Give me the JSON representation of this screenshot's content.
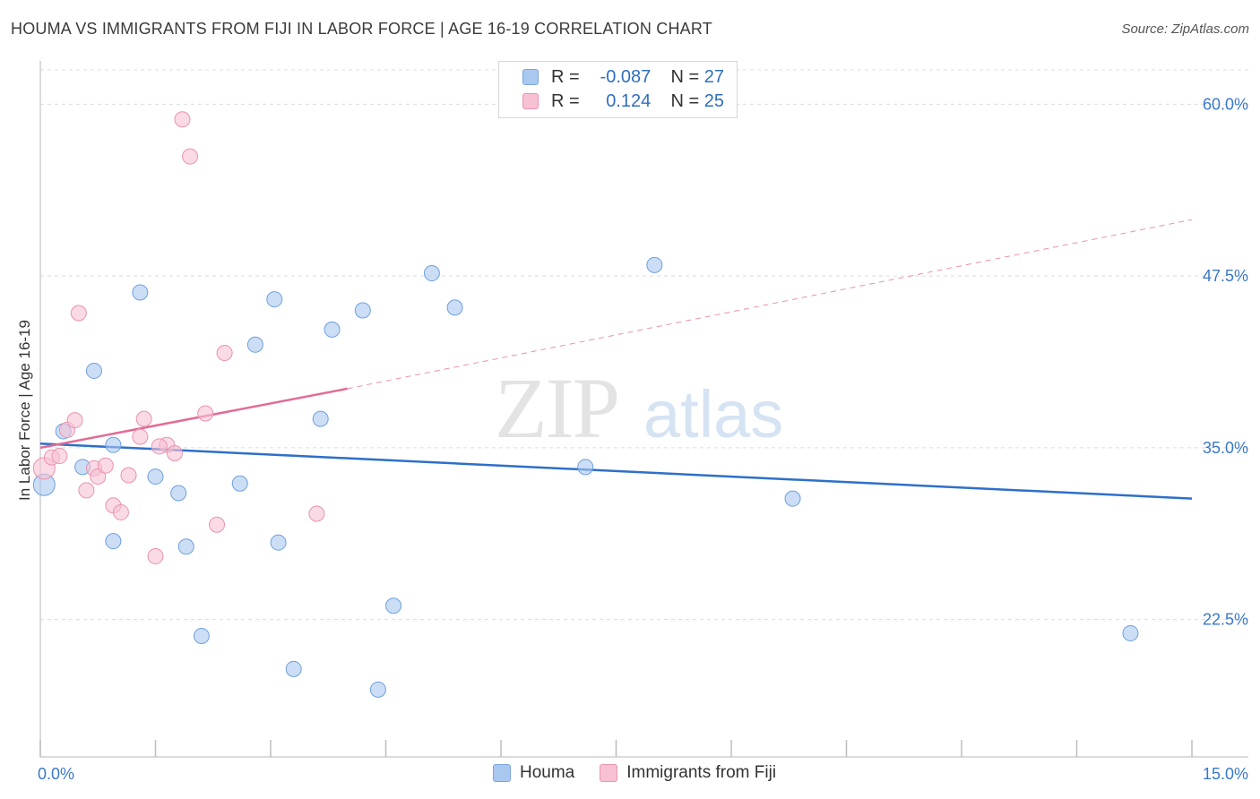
{
  "title": "HOUMA VS IMMIGRANTS FROM FIJI IN LABOR FORCE | AGE 16-19 CORRELATION CHART",
  "source": "Source: ZipAtlas.com",
  "watermark": {
    "zip": "ZIP",
    "atlas": "atlas"
  },
  "legend": {
    "rows": [
      {
        "r_label": "R =",
        "r_value": "-0.087",
        "n_label": "N =",
        "n_value": "27",
        "color": "#a9c8f0",
        "border": "#7aa6de"
      },
      {
        "r_label": "R =",
        "r_value": "0.124",
        "n_label": "N =",
        "n_value": "25",
        "color": "#f7c1d3",
        "border": "#e995b4"
      }
    ]
  },
  "chart_data": {
    "type": "scatter",
    "xlabel": "",
    "ylabel": "In Labor Force | Age 16-19",
    "xlim": [
      0,
      15
    ],
    "ylim": [
      12.5,
      62.5
    ],
    "x_tick_labels": [
      {
        "value": 0,
        "label": "0.0%"
      },
      {
        "value": 15,
        "label": "15.0%"
      }
    ],
    "y_tick_labels": [
      {
        "value": 22.5,
        "label": "22.5%"
      },
      {
        "value": 35.0,
        "label": "35.0%"
      },
      {
        "value": 47.5,
        "label": "47.5%"
      },
      {
        "value": 60.0,
        "label": "60.0%"
      }
    ],
    "grid": true,
    "series": [
      {
        "name": "Houma",
        "color": "#a9c8f0",
        "stroke": "#6f9fdc",
        "line_color": "#2e6fca",
        "points": [
          [
            0.05,
            32.3
          ],
          [
            0.3,
            36.2
          ],
          [
            0.55,
            33.6
          ],
          [
            0.7,
            40.6
          ],
          [
            0.95,
            35.2
          ],
          [
            0.95,
            28.2
          ],
          [
            1.3,
            46.3
          ],
          [
            1.5,
            32.9
          ],
          [
            1.8,
            31.7
          ],
          [
            1.9,
            27.8
          ],
          [
            2.1,
            21.3
          ],
          [
            2.6,
            32.4
          ],
          [
            2.8,
            42.5
          ],
          [
            3.05,
            45.8
          ],
          [
            3.1,
            28.1
          ],
          [
            3.3,
            18.9
          ],
          [
            3.65,
            37.1
          ],
          [
            3.8,
            43.6
          ],
          [
            4.2,
            45.0
          ],
          [
            4.4,
            17.4
          ],
          [
            4.6,
            23.5
          ],
          [
            5.1,
            47.7
          ],
          [
            5.4,
            45.2
          ],
          [
            7.1,
            33.6
          ],
          [
            8.0,
            48.3
          ],
          [
            9.8,
            31.3
          ],
          [
            14.2,
            21.5
          ]
        ],
        "trend": {
          "x": [
            0,
            15
          ],
          "y": [
            35.3,
            31.3
          ]
        }
      },
      {
        "name": "Immigrants from Fiji",
        "color": "#f7c1d3",
        "stroke": "#e993b2",
        "line_color": "#e36b96",
        "points": [
          [
            0.05,
            33.5
          ],
          [
            0.15,
            34.3
          ],
          [
            0.25,
            34.4
          ],
          [
            0.35,
            36.3
          ],
          [
            0.45,
            37.0
          ],
          [
            0.6,
            31.9
          ],
          [
            0.7,
            33.5
          ],
          [
            0.75,
            32.9
          ],
          [
            0.85,
            33.7
          ],
          [
            0.95,
            30.8
          ],
          [
            1.05,
            30.3
          ],
          [
            1.15,
            33.0
          ],
          [
            1.3,
            35.8
          ],
          [
            1.35,
            37.1
          ],
          [
            1.5,
            27.1
          ],
          [
            1.65,
            35.2
          ],
          [
            1.75,
            34.6
          ],
          [
            1.85,
            58.9
          ],
          [
            1.95,
            56.2
          ],
          [
            2.15,
            37.5
          ],
          [
            2.3,
            29.4
          ],
          [
            2.4,
            41.9
          ],
          [
            3.6,
            30.2
          ],
          [
            1.55,
            35.1
          ],
          [
            0.5,
            44.8
          ]
        ],
        "trend": {
          "x": [
            0,
            4.0
          ],
          "y": [
            35.0,
            39.3
          ]
        },
        "trend_dashed": {
          "x": [
            4.0,
            15
          ],
          "y": [
            39.3,
            51.6
          ]
        }
      }
    ]
  },
  "bottom_legend": [
    {
      "label": "Houma",
      "color": "#a9c8f0",
      "border": "#7aa6de"
    },
    {
      "label": "Immigrants from Fiji",
      "color": "#f7c1d3",
      "border": "#e995b4"
    }
  ]
}
